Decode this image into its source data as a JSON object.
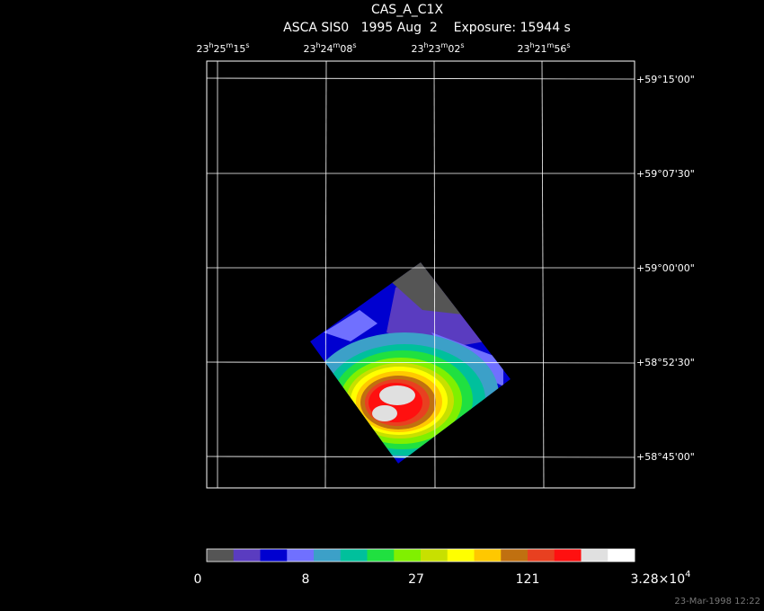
{
  "title": "CAS_A_C1X",
  "subtitle": "ASCA SIS0   1995 Aug  2    Exposure: 15944 s",
  "ra_labels": [
    [
      "23",
      "h",
      "25",
      "m",
      "15",
      "s"
    ],
    [
      "23",
      "h",
      "24",
      "m",
      "08",
      "s"
    ],
    [
      "23",
      "h",
      "23",
      "m",
      "02",
      "s"
    ],
    [
      "23",
      "h",
      "21",
      "m",
      "56",
      "s"
    ]
  ],
  "dec_labels": [
    "+59°15'00\"",
    "+59°07'30\"",
    "+59°00'00\"",
    "+58°52'30\"",
    "+58°45'00\""
  ],
  "colorbar": {
    "colors": [
      "#555555",
      "#5a3cc0",
      "#0000d0",
      "#7070ff",
      "#3ca0c8",
      "#00c09c",
      "#20e040",
      "#80f000",
      "#c8e000",
      "#ffff00",
      "#ffc800",
      "#c07010",
      "#e84020",
      "#ff1010",
      "#e0e0e0",
      "#ffffff"
    ],
    "labels": [
      [
        "0"
      ],
      [
        "8"
      ],
      [
        "27"
      ],
      [
        "121"
      ],
      [
        "3.28×10",
        "4"
      ]
    ]
  },
  "timestamp": "23-Mar-1998 12:22"
}
